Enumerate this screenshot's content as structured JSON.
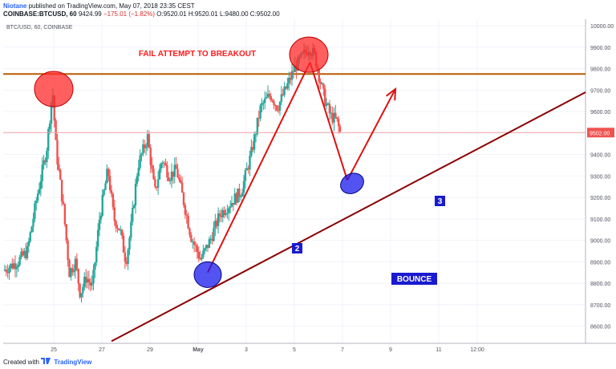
{
  "header": {
    "username": "Niotane",
    "published": "published on TradingView.com, May 07, 2018 23:35 CEST",
    "symbol": "COINBASE:BTCUSD, 60",
    "price": "9424.99",
    "change": "−175.01 (−1.82%)",
    "ohlc": "O:9520.01 H:9520.01 L:9480.00 C:9502.00"
  },
  "footer": {
    "created_with": "Created with",
    "brand": "TradingView"
  },
  "colors": {
    "up": "#26a69a",
    "down": "#ef5350",
    "resistance": "#b85c00",
    "trendline": "#8b0000",
    "arrow": "#e01010",
    "red_marker": "#ff2a2a",
    "blue_marker": "#1a1aee"
  },
  "chart_data": {
    "type": "candlestick",
    "symbol_label": "BTC/USD, 60, COINBASE",
    "ylim": [
      8520,
      10030
    ],
    "xlim": [
      0,
      24.2
    ],
    "y_ticks": [
      8600,
      8700,
      8800,
      8900,
      9000,
      9100,
      9200,
      9300,
      9400,
      9500,
      9600,
      9700,
      9800,
      9900,
      10000
    ],
    "x_ticks": [
      {
        "t": 2.1,
        "label": "25"
      },
      {
        "t": 4.1,
        "label": "27"
      },
      {
        "t": 6.1,
        "label": "29"
      },
      {
        "t": 8.1,
        "label": "May"
      },
      {
        "t": 10.1,
        "label": "3"
      },
      {
        "t": 12.1,
        "label": "5"
      },
      {
        "t": 14.1,
        "label": "7"
      },
      {
        "t": 16.1,
        "label": "9"
      },
      {
        "t": 18.1,
        "label": "11"
      },
      {
        "t": 19.7,
        "label": "12:00"
      }
    ],
    "price_label": "9502.00",
    "price_level": 9502,
    "anchors": [
      [
        0.0,
        8860
      ],
      [
        0.6,
        8900
      ],
      [
        1.0,
        8950
      ],
      [
        1.4,
        9200
      ],
      [
        1.8,
        9420
      ],
      [
        2.05,
        9700
      ],
      [
        2.2,
        9420
      ],
      [
        2.5,
        9150
      ],
      [
        2.75,
        8850
      ],
      [
        3.0,
        8900
      ],
      [
        3.2,
        8750
      ],
      [
        3.45,
        8830
      ],
      [
        3.7,
        8780
      ],
      [
        4.0,
        9100
      ],
      [
        4.35,
        9330
      ],
      [
        4.6,
        9100
      ],
      [
        4.85,
        9050
      ],
      [
        5.1,
        8900
      ],
      [
        5.3,
        9050
      ],
      [
        5.6,
        9350
      ],
      [
        6.0,
        9480
      ],
      [
        6.3,
        9220
      ],
      [
        6.6,
        9380
      ],
      [
        6.9,
        9300
      ],
      [
        7.2,
        9330
      ],
      [
        7.5,
        9180
      ],
      [
        7.8,
        9020
      ],
      [
        8.2,
        8910
      ],
      [
        8.6,
        9000
      ],
      [
        9.0,
        9120
      ],
      [
        9.5,
        9180
      ],
      [
        9.9,
        9230
      ],
      [
        10.3,
        9400
      ],
      [
        10.7,
        9620
      ],
      [
        11.1,
        9680
      ],
      [
        11.4,
        9620
      ],
      [
        11.8,
        9720
      ],
      [
        12.1,
        9800
      ],
      [
        12.4,
        9850
      ],
      [
        12.7,
        9900
      ],
      [
        12.95,
        9860
      ],
      [
        13.1,
        9780
      ],
      [
        13.35,
        9660
      ],
      [
        13.6,
        9580
      ],
      [
        13.85,
        9560
      ],
      [
        14.0,
        9502
      ]
    ],
    "resistance": 9775,
    "support_line": {
      "from": [
        4.5,
        8530
      ],
      "to": [
        24.2,
        9690
      ]
    },
    "callouts": {
      "fail": "FAIL ATTEMPT TO BREAKOUT",
      "bounce": "BOUNCE",
      "label2": "2",
      "label3": "3"
    },
    "red_circles": [
      {
        "t": 2.1,
        "y": 9705
      },
      {
        "t": 12.7,
        "y": 9865
      }
    ],
    "blue_circles": [
      {
        "t": 8.5,
        "y": 8840
      },
      {
        "t": 14.5,
        "y": 9265
      }
    ],
    "path_up": {
      "from": [
        8.5,
        8850
      ],
      "to": [
        12.75,
        9830
      ]
    },
    "path_down": {
      "from": [
        12.75,
        9830
      ],
      "to": [
        14.3,
        9280
      ]
    },
    "path_arrow": {
      "from": [
        14.3,
        9280
      ],
      "to": [
        16.3,
        9705
      ]
    }
  }
}
